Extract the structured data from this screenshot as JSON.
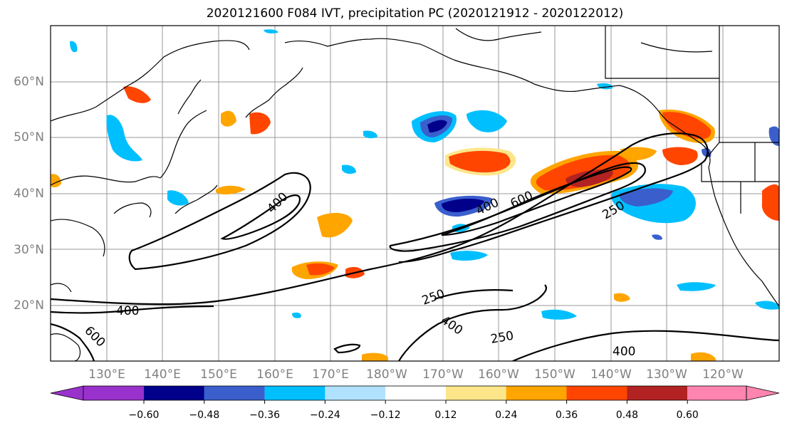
{
  "title": "2020121600 F084 IVT, precipitation PC (2020121912 - 2020122012)",
  "lat_labels": [
    "60°N",
    "50°N",
    "40°N",
    "30°N",
    "20°N"
  ],
  "lon_labels": [
    "130°E",
    "140°E",
    "150°E",
    "160°E",
    "170°E",
    "180°W",
    "170°W",
    "160°W",
    "150°W",
    "140°W",
    "130°W",
    "120°W"
  ],
  "colorbar": {
    "colors": [
      "#9932cc",
      "#00008b",
      "#3a5fcd",
      "#00bfff",
      "#b0e2ff",
      "#ffffff",
      "#fde68a",
      "#ffa500",
      "#ff4500",
      "#b22222",
      "#ff85b0"
    ],
    "ticks": [
      "−0.60",
      "−0.48",
      "−0.36",
      "−0.24",
      "−0.12",
      "0.12",
      "0.24",
      "0.36",
      "0.48",
      "0.60"
    ]
  },
  "contour_labels": [
    "400",
    "400",
    "600",
    "250",
    "250",
    "400",
    "600",
    "250",
    "400",
    "400"
  ]
}
